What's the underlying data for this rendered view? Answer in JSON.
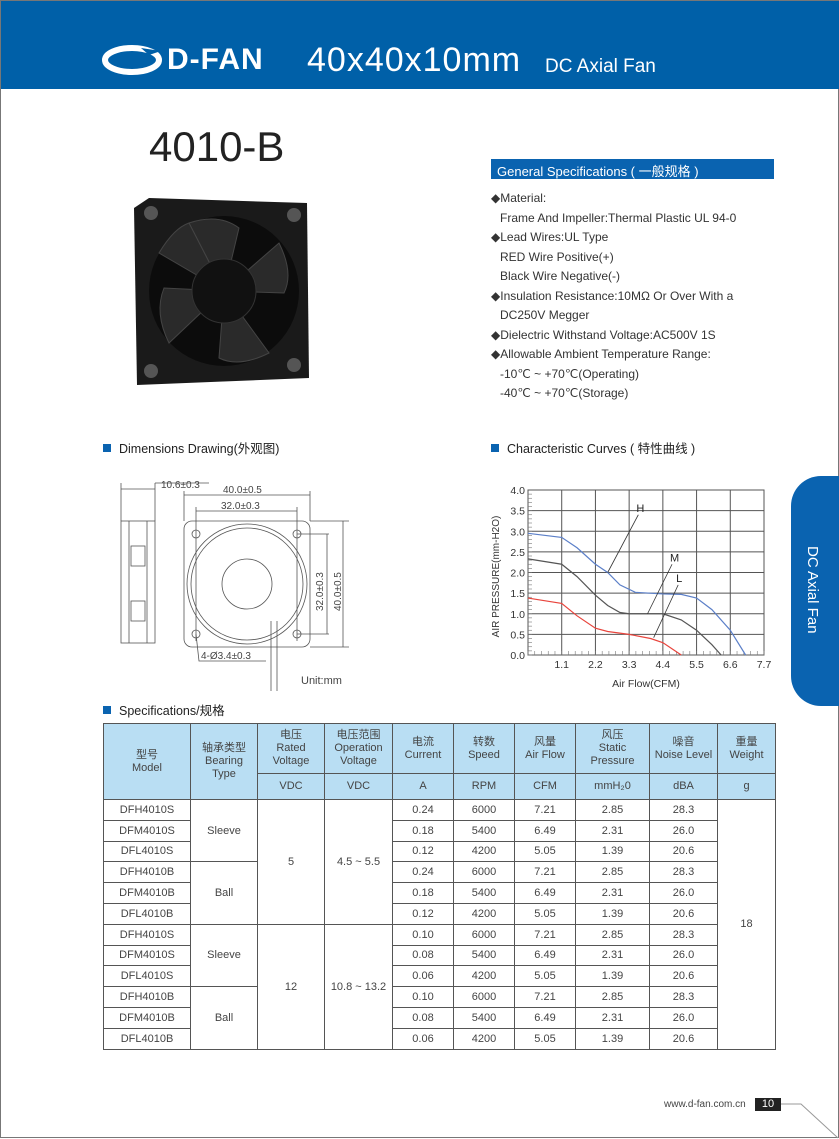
{
  "header": {
    "brand": "D-FAN",
    "size": "40x40x10mm",
    "subtitle": "DC Axial Fan"
  },
  "model": "4010-B",
  "general": {
    "title": "General Specifications ( 一般规格 )",
    "lines": [
      {
        "text": "Material:",
        "bullet": true
      },
      {
        "text": "Frame And Impeller:Thermal Plastic UL 94-0",
        "bullet": false
      },
      {
        "text": "Lead Wires:UL Type",
        "bullet": true
      },
      {
        "text": "RED Wire Positive(+)",
        "bullet": false
      },
      {
        "text": "Black Wire Negative(-)",
        "bullet": false
      },
      {
        "text": "Insulation Resistance:10MΩ  Or Over With a",
        "bullet": true
      },
      {
        "text": " DC250V Megger",
        "bullet": false
      },
      {
        "text": "Dielectric Withstand Voltage:AC500V 1S",
        "bullet": true
      },
      {
        "text": "Allowable Ambient Temperature Range:",
        "bullet": true
      },
      {
        "text": "-10℃ ~ +70℃(Operating)",
        "bullet": false
      },
      {
        "text": "-40℃ ~ +70℃(Storage)",
        "bullet": false
      }
    ]
  },
  "sections": {
    "dimensions": "Dimensions Drawing(外观图)",
    "curves": "Characteristic Curves ( 特性曲线 )",
    "specs": "Specifications/规格"
  },
  "drawing": {
    "d1": "10.6±0.3",
    "d2": "40.0±0.5",
    "d3": "32.0±0.3",
    "d4": "32.0±0.3",
    "d5": "40.0±0.5",
    "holes": "4-Ø3.4±0.3",
    "unit": "Unit:mm"
  },
  "chart_data": {
    "type": "line",
    "xlabel": "Air Flow(CFM)",
    "ylabel": "AIR PRESSURE(mm-H2O)",
    "xlim": [
      0,
      7.7
    ],
    "ylim": [
      0,
      4.0
    ],
    "grid": true,
    "xticks": [
      "1.1",
      "2.2",
      "3.3",
      "4.4",
      "5.5",
      "6.6",
      "7.7"
    ],
    "yticks": [
      "0.0",
      "0.5",
      "1.0",
      "1.5",
      "2.0",
      "2.5",
      "3.0",
      "3.5",
      "4.0"
    ],
    "series": [
      {
        "name": "H",
        "color": "#5b7fc8",
        "points": [
          [
            0,
            2.95
          ],
          [
            1.1,
            2.85
          ],
          [
            1.6,
            2.6
          ],
          [
            2.2,
            2.2
          ],
          [
            2.6,
            2.0
          ],
          [
            3.0,
            1.7
          ],
          [
            3.5,
            1.52
          ],
          [
            4.4,
            1.48
          ],
          [
            5.0,
            1.47
          ],
          [
            5.5,
            1.38
          ],
          [
            6.0,
            1.1
          ],
          [
            6.6,
            0.6
          ],
          [
            7.1,
            0
          ]
        ]
      },
      {
        "name": "M",
        "color": "#555555",
        "points": [
          [
            0,
            2.33
          ],
          [
            1.1,
            2.2
          ],
          [
            1.6,
            1.9
          ],
          [
            2.2,
            1.45
          ],
          [
            2.6,
            1.2
          ],
          [
            3.0,
            1.03
          ],
          [
            3.3,
            1.0
          ],
          [
            4.4,
            1.0
          ],
          [
            5.0,
            0.85
          ],
          [
            5.5,
            0.6
          ],
          [
            6.0,
            0.25
          ],
          [
            6.3,
            0
          ]
        ]
      },
      {
        "name": "L",
        "color": "#e8443c",
        "points": [
          [
            0,
            1.38
          ],
          [
            1.1,
            1.25
          ],
          [
            1.6,
            0.95
          ],
          [
            2.2,
            0.65
          ],
          [
            2.6,
            0.57
          ],
          [
            3.3,
            0.5
          ],
          [
            4.0,
            0.4
          ],
          [
            4.4,
            0.3
          ],
          [
            4.8,
            0.1
          ],
          [
            5.0,
            0
          ]
        ]
      }
    ]
  },
  "table": {
    "headers": [
      [
        "型号",
        "Model"
      ],
      [
        "轴承类型",
        "Bearing",
        "Type"
      ],
      [
        "电压",
        "Rated",
        "Voltage"
      ],
      [
        "电压范围",
        "Operation",
        "Voltage"
      ],
      [
        "电流",
        "Current"
      ],
      [
        "转数",
        "Speed"
      ],
      [
        "风量",
        "Air Flow"
      ],
      [
        "风压",
        "Static",
        "Pressure"
      ],
      [
        "噪音",
        "Noise Level"
      ],
      [
        "重量",
        "Weight"
      ]
    ],
    "units": [
      "VDC",
      "VDC",
      "A",
      "RPM",
      "CFM",
      "mmH₂0",
      "dBA",
      "g"
    ],
    "rows": [
      [
        "DFH4010S",
        "Sleeve",
        "5",
        "4.5 ~ 5.5",
        "0.24",
        "6000",
        "7.21",
        "2.85",
        "28.3",
        "18"
      ],
      [
        "DFM4010S",
        "",
        "",
        "",
        "0.18",
        "5400",
        "6.49",
        "2.31",
        "26.0",
        ""
      ],
      [
        "DFL4010S",
        "",
        "",
        "",
        "0.12",
        "4200",
        "5.05",
        "1.39",
        "20.6",
        ""
      ],
      [
        "DFH4010B",
        "Ball",
        "",
        "",
        "0.24",
        "6000",
        "7.21",
        "2.85",
        "28.3",
        ""
      ],
      [
        "DFM4010B",
        "",
        "",
        "",
        "0.18",
        "5400",
        "6.49",
        "2.31",
        "26.0",
        ""
      ],
      [
        "DFL4010B",
        "",
        "",
        "",
        "0.12",
        "4200",
        "5.05",
        "1.39",
        "20.6",
        ""
      ],
      [
        "DFH4010S",
        "Sleeve",
        "12",
        "10.8 ~ 13.2",
        "0.10",
        "6000",
        "7.21",
        "2.85",
        "28.3",
        ""
      ],
      [
        "DFM4010S",
        "",
        "",
        "",
        "0.08",
        "5400",
        "6.49",
        "2.31",
        "26.0",
        ""
      ],
      [
        "DFL4010S",
        "",
        "",
        "",
        "0.06",
        "4200",
        "5.05",
        "1.39",
        "20.6",
        ""
      ],
      [
        "DFH4010B",
        "Ball",
        "",
        "",
        "0.10",
        "6000",
        "7.21",
        "2.85",
        "28.3",
        ""
      ],
      [
        "DFM4010B",
        "",
        "",
        "",
        "0.08",
        "5400",
        "6.49",
        "2.31",
        "26.0",
        ""
      ],
      [
        "DFL4010B",
        "",
        "",
        "",
        "0.06",
        "4200",
        "5.05",
        "1.39",
        "20.6",
        ""
      ]
    ]
  },
  "side_tab": "DC Axial Fan",
  "footer": {
    "url": "www.d-fan.com.cn",
    "page": "10"
  }
}
